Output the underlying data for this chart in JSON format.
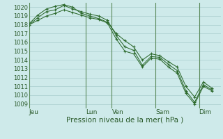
{
  "title": "Pression niveau de la mer( hPa )",
  "bg_color": "#ceeaea",
  "grid_color": "#a8cccc",
  "line_color": "#2d6a2d",
  "vline_color": "#5a8a5a",
  "ylim": [
    1008.5,
    1020.5
  ],
  "yticks": [
    1009,
    1010,
    1011,
    1012,
    1013,
    1014,
    1015,
    1016,
    1017,
    1018,
    1019,
    1020
  ],
  "xtick_labels": [
    "Jeu",
    "Lun",
    "Ven",
    "Sam",
    "Dim"
  ],
  "xtick_positions": [
    0,
    6.5,
    9.5,
    14.5,
    19.5
  ],
  "vline_positions": [
    0,
    6.5,
    9.5,
    14.5,
    19.5
  ],
  "xlim": [
    0,
    22
  ],
  "series1": [
    1018.0,
    1018.8,
    1019.5,
    1019.7,
    1020.2,
    1019.8,
    1019.5,
    1019.2,
    1019.0,
    1018.5,
    1016.8,
    1015.5,
    1015.1,
    1013.4,
    1014.4,
    1014.3,
    1013.5,
    1012.8,
    1010.5,
    1009.2,
    1011.2,
    1010.6
  ],
  "series2": [
    1018.1,
    1019.1,
    1019.8,
    1020.1,
    1020.3,
    1020.0,
    1019.3,
    1019.0,
    1018.7,
    1018.3,
    1017.0,
    1016.2,
    1015.5,
    1014.0,
    1014.7,
    1014.5,
    1013.8,
    1013.2,
    1011.0,
    1009.8,
    1011.5,
    1010.8
  ],
  "series3": [
    1018.0,
    1018.5,
    1019.0,
    1019.3,
    1019.7,
    1019.4,
    1019.1,
    1018.8,
    1018.6,
    1018.2,
    1016.4,
    1015.0,
    1014.7,
    1013.2,
    1014.2,
    1014.1,
    1013.2,
    1012.5,
    1010.2,
    1009.0,
    1011.0,
    1010.5
  ],
  "ylabel_fontsize": 6,
  "xlabel_fontsize": 6.5,
  "title_fontsize": 7.5
}
